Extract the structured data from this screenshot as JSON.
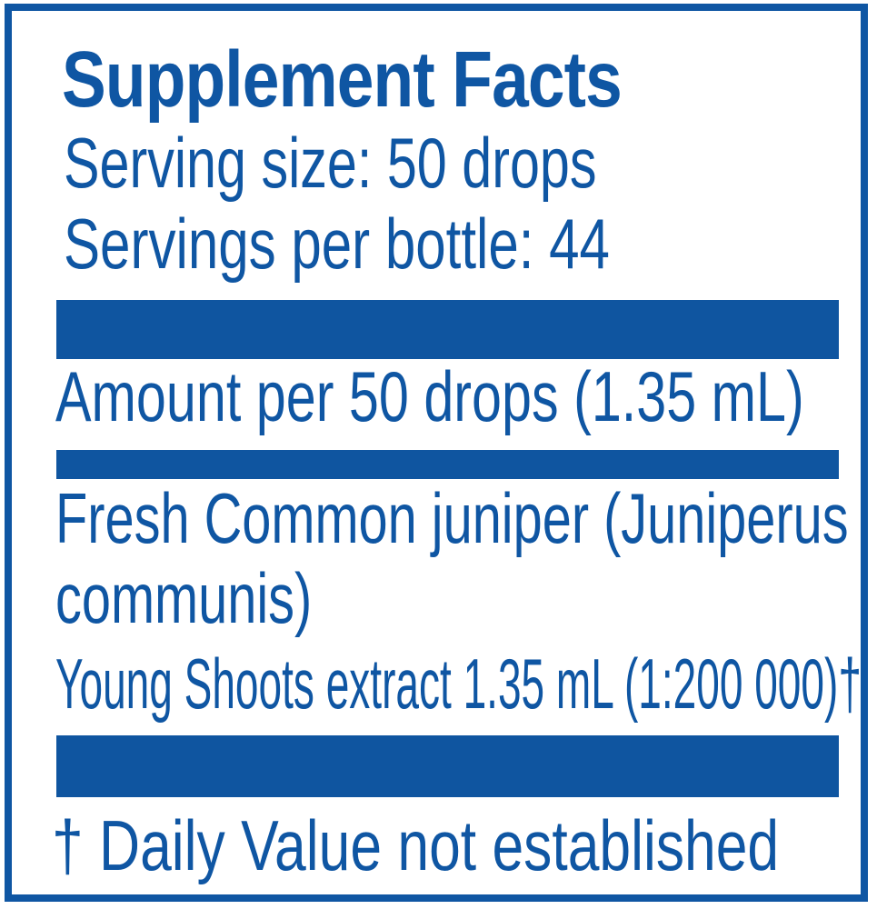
{
  "label": {
    "title": "Supplement Facts",
    "serving_size": "Serving size: 50 drops",
    "servings_per_bottle": "Servings per bottle: 44",
    "amount_header": "Amount per 50 drops (1.35 mL)",
    "ingredient": {
      "line1": "Fresh Common juniper (Juniperus",
      "line2": "communis)",
      "line3": "Young Shoots extract 1.35 mL (1:200 000)†"
    },
    "footnote": "† Daily Value not established"
  },
  "colors": {
    "ink": "#0F56A3",
    "bar": "#0F55A0",
    "background": "#FFFFFF"
  }
}
